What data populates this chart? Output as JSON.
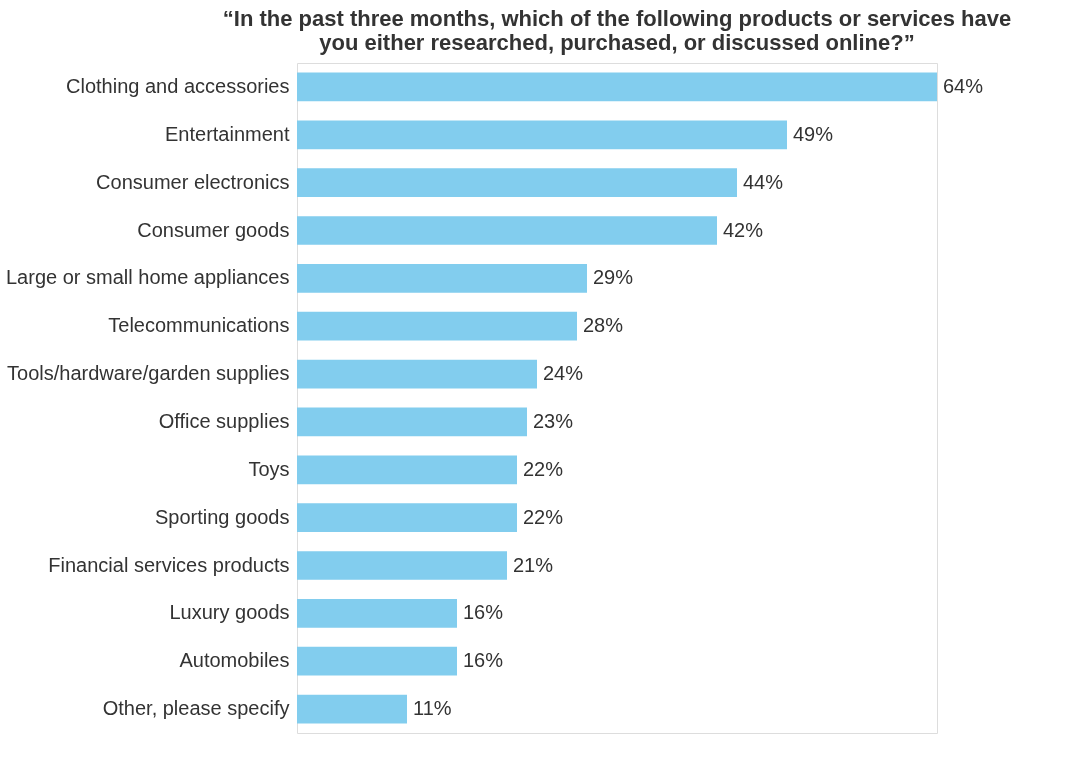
{
  "chart_data": {
    "type": "bar",
    "orientation": "horizontal",
    "title": [
      "“In the past three months, which of the following products or services have",
      "you either researched, purchased, or discussed online?”"
    ],
    "categories": [
      "Clothing and accessories",
      "Entertainment",
      "Consumer electronics",
      "Consumer goods",
      "Large or small home appliances",
      "Telecommunications",
      "Tools/hardware/garden supplies",
      "Office supplies",
      "Toys",
      "Sporting goods",
      "Financial services products",
      "Luxury goods",
      "Automobiles",
      "Other, please specify"
    ],
    "values": [
      64,
      49,
      44,
      42,
      29,
      28,
      24,
      23,
      22,
      22,
      21,
      16,
      16,
      11
    ],
    "value_labels": [
      "64%",
      "49%",
      "44%",
      "42%",
      "29%",
      "28%",
      "24%",
      "23%",
      "22%",
      "22%",
      "21%",
      "16%",
      "16%",
      "11%"
    ],
    "color": "#82cdee"
  }
}
